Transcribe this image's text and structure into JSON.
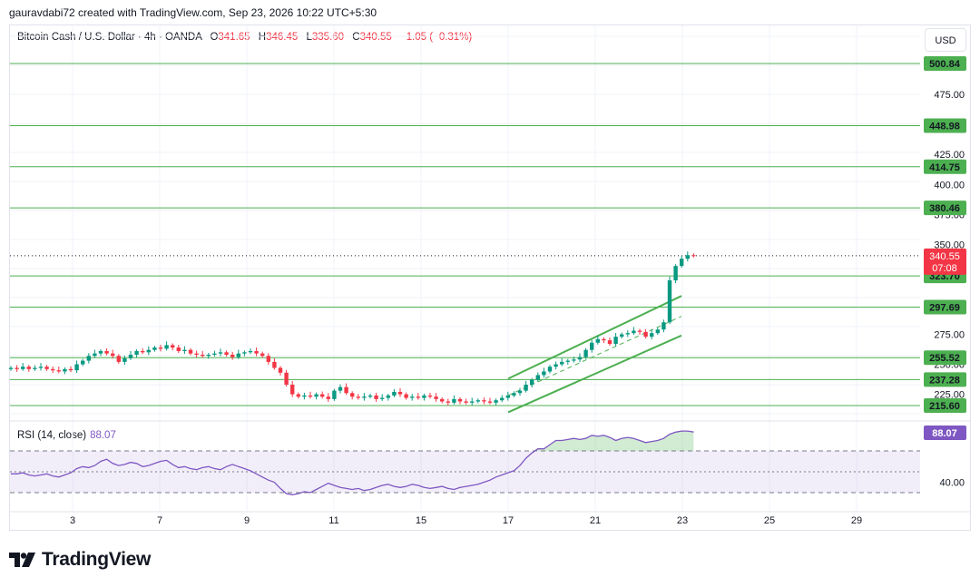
{
  "header": {
    "credit": "gauravdabi72 created with TradingView.com, Sep 23, 2026 10:22 UTC+5:30",
    "symbol": "Bitcoin Cash / U.S. Dollar · 4h · OANDA",
    "open_label": "O",
    "open": "341.65",
    "high_label": "H",
    "high": "346.45",
    "low_label": "L",
    "low": "335.60",
    "close_label": "C",
    "close": "340.55",
    "change": "−1.05 (−0.31%)",
    "currency": "USD"
  },
  "rsi": {
    "label": "RSI (14, close)",
    "value": "88.07",
    "value_num": 88.07,
    "upper": 70,
    "middle": 50,
    "lower": 30
  },
  "price_badge": {
    "value": "340.55",
    "countdown": "07:08"
  },
  "brand": {
    "name": "TradingView"
  },
  "colors": {
    "up": "#089981",
    "down": "#f23645",
    "level": "#4caf50",
    "rsi": "#7e57c2",
    "channel": "#4caf50"
  },
  "chart_data": {
    "type": "candlestick",
    "title": "Bitcoin Cash / U.S. Dollar · 4h · OANDA",
    "ylim": [
      205,
      525
    ],
    "y_ticks": [
      "475.00",
      "425.00",
      "400.00",
      "375.00",
      "350.00",
      "275.00",
      "250.00",
      "225.00"
    ],
    "x_ticks": [
      "3",
      "7",
      "9",
      "11",
      "15",
      "17",
      "21",
      "23",
      "25",
      "29"
    ],
    "levels": [
      {
        "value": 500.84,
        "label": "500.84"
      },
      {
        "value": 448.98,
        "label": "448.98"
      },
      {
        "value": 414.75,
        "label": "414.75"
      },
      {
        "value": 380.46,
        "label": "380.46"
      },
      {
        "value": 323.7,
        "label": "323.70"
      },
      {
        "value": 297.69,
        "label": "297.69"
      },
      {
        "value": 255.52,
        "label": "255.52"
      },
      {
        "value": 237.28,
        "label": "237.28"
      },
      {
        "value": 215.6,
        "label": "215.60"
      }
    ],
    "last_price": 340.55,
    "closes": [
      247,
      246,
      248,
      246,
      247,
      248,
      246,
      245,
      244,
      246,
      245,
      250,
      253,
      257,
      259,
      261,
      259,
      257,
      252,
      255,
      258,
      261,
      260,
      262,
      264,
      263,
      266,
      264,
      261,
      262,
      259,
      258,
      257,
      258,
      259,
      260,
      258,
      256,
      259,
      260,
      261,
      259,
      257,
      252,
      247,
      243,
      233,
      225,
      223,
      224,
      223,
      225,
      223,
      221,
      228,
      231,
      226,
      223,
      222,
      223,
      224,
      221,
      222,
      224,
      227,
      225,
      222,
      223,
      222,
      224,
      223,
      221,
      219,
      218,
      221,
      219,
      218,
      219,
      220,
      219,
      218,
      220,
      222,
      224,
      226,
      228,
      233,
      237,
      241,
      244,
      248,
      250,
      252,
      253,
      254,
      256,
      262,
      268,
      271,
      270,
      267,
      273,
      275,
      276,
      278,
      277,
      273,
      276,
      279,
      285,
      320,
      332,
      338,
      341,
      340.55
    ],
    "rsi_values": [
      48,
      48,
      49,
      47,
      46,
      47,
      48,
      46,
      45,
      47,
      49,
      53,
      55,
      54,
      56,
      60,
      62,
      58,
      56,
      57,
      59,
      58,
      55,
      56,
      58,
      60,
      61,
      57,
      54,
      55,
      53,
      52,
      54,
      55,
      53,
      52,
      55,
      57,
      55,
      53,
      51,
      48,
      45,
      42,
      40,
      34,
      29,
      28,
      29,
      31,
      30,
      33,
      36,
      39,
      37,
      35,
      34,
      33,
      34,
      32,
      33,
      35,
      37,
      38,
      36,
      35,
      36,
      38,
      37,
      35,
      34,
      35,
      36,
      34,
      33,
      35,
      36,
      37,
      38,
      40,
      42,
      45,
      47,
      49,
      51,
      56,
      63,
      68,
      72,
      72,
      76,
      80,
      80,
      81,
      82,
      81,
      82,
      85,
      84,
      85,
      83,
      80,
      82,
      83,
      82,
      80,
      78,
      79,
      80,
      82,
      86,
      88,
      89,
      89,
      88.07
    ],
    "x_day_index": {
      "3": 8,
      "7": 24,
      "9": 40,
      "11": 56,
      "15": 72,
      "17": 88,
      "21": 104,
      "23": 120,
      "25": 136,
      "29": 152
    }
  }
}
